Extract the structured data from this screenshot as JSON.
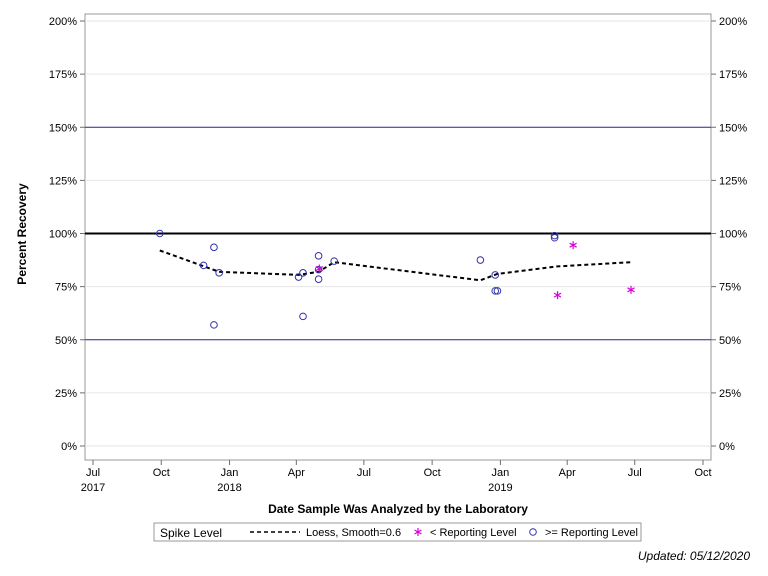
{
  "chart_data": {
    "type": "scatter",
    "title": "",
    "xlabel": "Date Sample Was Analyzed by the Laboratory",
    "ylabel": "Percent Recovery",
    "xlim": [
      "2017-07-01",
      "2019-10-01"
    ],
    "ylim": [
      0,
      200
    ],
    "y_ticks": [
      {
        "value": 0,
        "label": "0%"
      },
      {
        "value": 25,
        "label": "25%"
      },
      {
        "value": 50,
        "label": "50%"
      },
      {
        "value": 75,
        "label": "75%"
      },
      {
        "value": 100,
        "label": "100%"
      },
      {
        "value": 125,
        "label": "125%"
      },
      {
        "value": 150,
        "label": "150%"
      },
      {
        "value": 175,
        "label": "175%"
      },
      {
        "value": 200,
        "label": "200%"
      }
    ],
    "x_ticks": [
      {
        "date": "2017-07-01",
        "label": "Jul",
        "year": "2017"
      },
      {
        "date": "2017-10-01",
        "label": "Oct",
        "year": ""
      },
      {
        "date": "2018-01-01",
        "label": "Jan",
        "year": "2018"
      },
      {
        "date": "2018-04-01",
        "label": "Apr",
        "year": ""
      },
      {
        "date": "2018-07-01",
        "label": "Jul",
        "year": ""
      },
      {
        "date": "2018-10-01",
        "label": "Oct",
        "year": ""
      },
      {
        "date": "2019-01-01",
        "label": "Jan",
        "year": "2019"
      },
      {
        "date": "2019-04-01",
        "label": "Apr",
        "year": ""
      },
      {
        "date": "2019-07-01",
        "label": "Jul",
        "year": ""
      },
      {
        "date": "2019-10-01",
        "label": "Oct",
        "year": ""
      }
    ],
    "reference_lines": [
      {
        "y": 150,
        "color": "#2b2b8f",
        "width": 1
      },
      {
        "y": 100,
        "color": "#000000",
        "width": 2
      },
      {
        "y": 50,
        "color": "#2b2b8f",
        "width": 1
      }
    ],
    "grid": true,
    "legend": {
      "placement": "bottom",
      "title": "Spike Level",
      "entries": [
        {
          "name": "Loess, Smooth=0.6",
          "marker": "dashed-line"
        },
        {
          "name": "< Reporting Level",
          "marker": "star"
        },
        {
          "name": ">= Reporting Level",
          "marker": "circle"
        }
      ]
    },
    "series": [
      {
        "name": ">= Reporting Level",
        "marker": "circle",
        "color": "#3333aa",
        "points": [
          {
            "x": "2017-09-29",
            "y": 100
          },
          {
            "x": "2017-11-27",
            "y": 85
          },
          {
            "x": "2017-12-11",
            "y": 93.5
          },
          {
            "x": "2017-12-11",
            "y": 57
          },
          {
            "x": "2017-12-18",
            "y": 81.5
          },
          {
            "x": "2018-04-04",
            "y": 79.5
          },
          {
            "x": "2018-04-10",
            "y": 81.5
          },
          {
            "x": "2018-04-10",
            "y": 61
          },
          {
            "x": "2018-05-01",
            "y": 89.5
          },
          {
            "x": "2018-05-01",
            "y": 83
          },
          {
            "x": "2018-05-01",
            "y": 78.5
          },
          {
            "x": "2018-05-22",
            "y": 87
          },
          {
            "x": "2018-12-05",
            "y": 87.5
          },
          {
            "x": "2018-12-25",
            "y": 80.5
          },
          {
            "x": "2018-12-25",
            "y": 73
          },
          {
            "x": "2018-12-28",
            "y": 73
          },
          {
            "x": "2019-03-15",
            "y": 99
          },
          {
            "x": "2019-03-15",
            "y": 98
          }
        ]
      },
      {
        "name": "< Reporting Level",
        "marker": "star",
        "color": "#dd00dd",
        "points": [
          {
            "x": "2018-05-02",
            "y": 83.5
          },
          {
            "x": "2019-03-19",
            "y": 71
          },
          {
            "x": "2019-04-09",
            "y": 94.5
          },
          {
            "x": "2019-06-26",
            "y": 73.5
          }
        ]
      },
      {
        "name": "Loess, Smooth=0.6",
        "marker": "dashed-line",
        "color": "#000000",
        "points": [
          {
            "x": "2017-09-29",
            "y": 92
          },
          {
            "x": "2017-12-18",
            "y": 82
          },
          {
            "x": "2018-04-04",
            "y": 80.5
          },
          {
            "x": "2018-05-01",
            "y": 82
          },
          {
            "x": "2018-05-22",
            "y": 86.5
          },
          {
            "x": "2018-12-05",
            "y": 78
          },
          {
            "x": "2018-12-28",
            "y": 81
          },
          {
            "x": "2019-03-19",
            "y": 84.5
          },
          {
            "x": "2019-06-26",
            "y": 86.5
          }
        ]
      }
    ]
  },
  "footnote": "Updated: 05/12/2020"
}
